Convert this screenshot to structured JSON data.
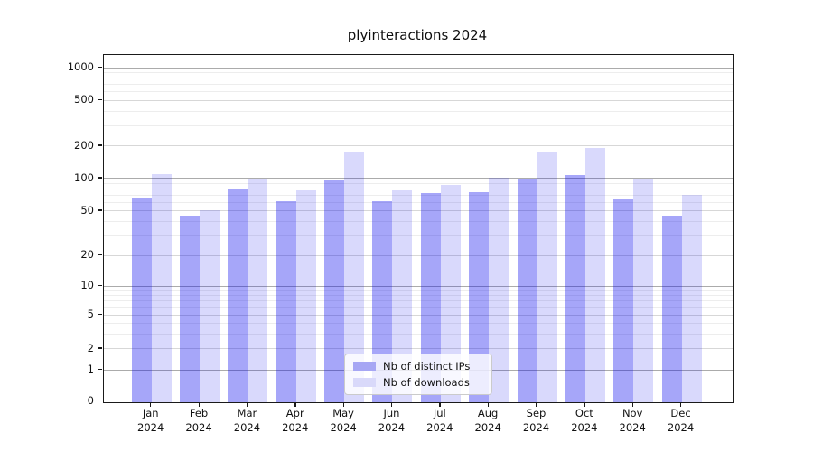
{
  "chart_data": {
    "type": "bar",
    "title": "plyinteractions 2024",
    "categories": [
      "Jan 2024",
      "Feb 2024",
      "Mar 2024",
      "Apr 2024",
      "May 2024",
      "Jun 2024",
      "Jul 2024",
      "Aug 2024",
      "Sep 2024",
      "Oct 2024",
      "Nov 2024",
      "Dec 2024"
    ],
    "x": {
      "months": [
        "Jan",
        "Feb",
        "Mar",
        "Apr",
        "May",
        "Jun",
        "Jul",
        "Aug",
        "Sep",
        "Oct",
        "Nov",
        "Dec"
      ],
      "year": "2024"
    },
    "series": [
      {
        "name": "Nb of distinct IPs",
        "color": "rgba(0,0,238,0.35)",
        "solid_color": "#a6a6f4",
        "values": [
          65,
          45,
          81,
          62,
          95,
          61,
          73,
          75,
          100,
          108,
          64,
          45
        ]
      },
      {
        "name": "Nb of downloads",
        "color": "rgba(0,0,238,0.15)",
        "solid_color": "#d9d9fa",
        "values": [
          109,
          51,
          100,
          78,
          177,
          78,
          87,
          102,
          177,
          192,
          100,
          70
        ]
      }
    ],
    "y_axis": {
      "scale": "symlog",
      "ticks": [
        0,
        1,
        2,
        5,
        10,
        20,
        50,
        100,
        200,
        500,
        1000
      ],
      "range": [
        0,
        1000
      ]
    },
    "grid": true,
    "legend": {
      "position": "lower center"
    }
  }
}
